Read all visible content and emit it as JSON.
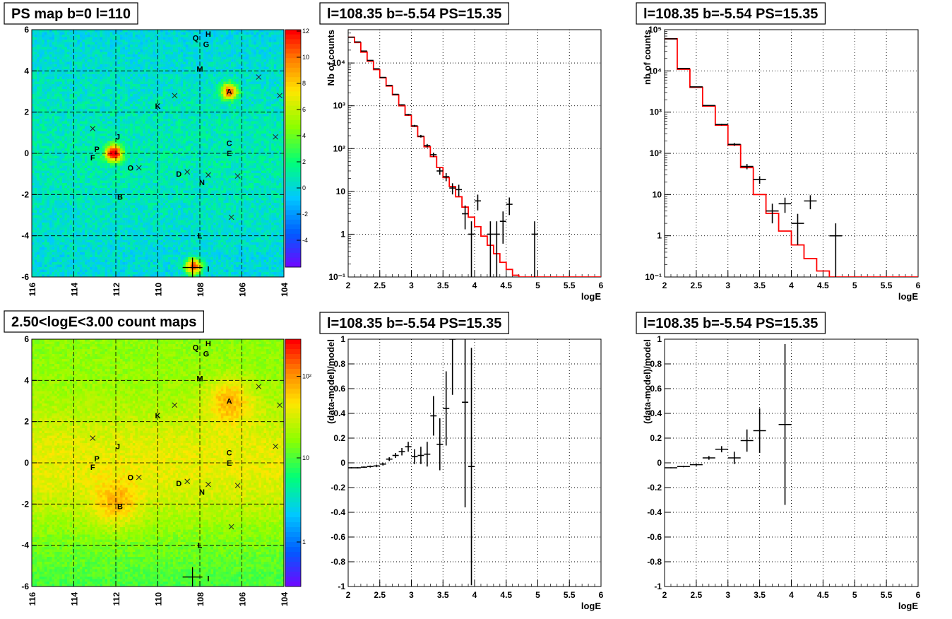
{
  "maps": [
    {
      "title": "PS map b=0 l=110",
      "x_ticks": [
        "116",
        "114",
        "112",
        "110",
        "108",
        "106",
        "104"
      ],
      "y_ticks": [
        "6",
        "4",
        "2",
        "0",
        "-2",
        "-4",
        "-6"
      ],
      "colorbar_ticks": [
        "12",
        "10",
        "8",
        "6",
        "4",
        "2",
        "0",
        "-2",
        "-4"
      ],
      "colorbar_scale": "linear",
      "palette": "rainbow",
      "background": "cyan-green",
      "hotspots": [
        {
          "l": 112.1,
          "b": 0.0,
          "peak": 12
        },
        {
          "l": 106.6,
          "b": 3.0,
          "peak": 9
        },
        {
          "l": 108.3,
          "b": -5.5,
          "peak": 10
        }
      ]
    },
    {
      "title": "2.50<logE<3.00 count maps",
      "x_ticks": [
        "116",
        "114",
        "112",
        "110",
        "108",
        "106",
        "104"
      ],
      "y_ticks": [
        "6",
        "4",
        "2",
        "0",
        "-2",
        "-4",
        "-6"
      ],
      "colorbar_ticks": [
        "10²",
        "10",
        "1"
      ],
      "colorbar_scale": "log",
      "palette": "rainbow",
      "background": "yellow-green",
      "hotspots": [
        {
          "l": 106.6,
          "b": 3.0,
          "peak": 300
        },
        {
          "l": 112.0,
          "b": -2.0,
          "peak": 120
        }
      ]
    }
  ],
  "sources": [
    {
      "label": "Q",
      "l": 108.2,
      "b": 5.6
    },
    {
      "label": "H",
      "l": 107.6,
      "b": 5.8
    },
    {
      "label": "G",
      "l": 107.7,
      "b": 5.3
    },
    {
      "label": "M",
      "l": 108.0,
      "b": 4.1
    },
    {
      "label": "A",
      "l": 106.6,
      "b": 3.0
    },
    {
      "label": "K",
      "l": 110.0,
      "b": 2.3
    },
    {
      "label": "J",
      "l": 111.9,
      "b": 0.8
    },
    {
      "label": "P",
      "l": 112.9,
      "b": 0.2
    },
    {
      "label": "F",
      "l": 113.1,
      "b": -0.2
    },
    {
      "label": "C",
      "l": 106.6,
      "b": 0.5
    },
    {
      "label": "E",
      "l": 106.6,
      "b": -0.0
    },
    {
      "label": "O",
      "l": 111.3,
      "b": -0.7
    },
    {
      "label": "D",
      "l": 109.0,
      "b": -1.0
    },
    {
      "label": "N",
      "l": 107.9,
      "b": -1.4
    },
    {
      "label": "B",
      "l": 111.8,
      "b": -2.1
    },
    {
      "label": "L",
      "l": 108.0,
      "b": -4.0
    },
    {
      "label": "I",
      "l": 107.6,
      "b": -5.6
    }
  ],
  "markers": [
    {
      "l": 105.2,
      "b": 3.7
    },
    {
      "l": 104.2,
      "b": 2.8
    },
    {
      "l": 109.2,
      "b": 2.8
    },
    {
      "l": 113.1,
      "b": 1.2
    },
    {
      "l": 104.4,
      "b": 0.8
    },
    {
      "l": 110.9,
      "b": -0.7
    },
    {
      "l": 108.6,
      "b": -0.9
    },
    {
      "l": 107.6,
      "b": -1.05
    },
    {
      "l": 106.2,
      "b": -1.1
    },
    {
      "l": 106.5,
      "b": -3.1
    }
  ],
  "current_source": {
    "l": 108.35,
    "b": -5.54
  },
  "chart_data": [
    {
      "panel": "top-middle",
      "type": "step+errorbars",
      "title": "l=108.35 b=-5.54 PS=15.35",
      "xlabel": "logE",
      "ylabel": "Nb of counts",
      "yscale": "log",
      "xlim": [
        2,
        6
      ],
      "ylim": [
        0.1,
        60000
      ],
      "grid": true,
      "x_ticks": [
        "2",
        "2.5",
        "3",
        "3.5",
        "4",
        "4.5",
        "5",
        "5.5",
        "6"
      ],
      "y_ticks": [
        {
          "v": 0.1,
          "t": "10⁻¹"
        },
        {
          "v": 1,
          "t": "1"
        },
        {
          "v": 10,
          "t": "10"
        },
        {
          "v": 100,
          "t": "10²"
        },
        {
          "v": 1000,
          "t": "10³"
        },
        {
          "v": 10000,
          "t": "10⁴"
        }
      ],
      "model_bin_width": 0.1,
      "model": [
        40000,
        30000,
        18000,
        11000,
        7000,
        4500,
        2900,
        1800,
        1000,
        600,
        330,
        190,
        110,
        65,
        36,
        21,
        13,
        7.5,
        4.3,
        2.5,
        1.5,
        0.9,
        0.55,
        0.35,
        0.22,
        0.15,
        0.11,
        0.1,
        0.1,
        0.1,
        0.1,
        0.1,
        0.1,
        0.1,
        0.1,
        0.1,
        0.1,
        0.1,
        0.1,
        0.1
      ],
      "data": [
        {
          "x": 2.05,
          "y": 40000,
          "xerr": 0.05,
          "yerr": 200
        },
        {
          "x": 2.15,
          "y": 31000,
          "xerr": 0.05,
          "yerr": 180
        },
        {
          "x": 2.25,
          "y": 19000,
          "xerr": 0.05,
          "yerr": 140
        },
        {
          "x": 2.35,
          "y": 11500,
          "xerr": 0.05,
          "yerr": 110
        },
        {
          "x": 2.45,
          "y": 7300,
          "xerr": 0.05,
          "yerr": 85
        },
        {
          "x": 2.55,
          "y": 4600,
          "xerr": 0.05,
          "yerr": 68
        },
        {
          "x": 2.65,
          "y": 3000,
          "xerr": 0.05,
          "yerr": 55
        },
        {
          "x": 2.75,
          "y": 1850,
          "xerr": 0.05,
          "yerr": 43
        },
        {
          "x": 2.85,
          "y": 1050,
          "xerr": 0.05,
          "yerr": 32
        },
        {
          "x": 2.95,
          "y": 620,
          "xerr": 0.05,
          "yerr": 25
        },
        {
          "x": 3.05,
          "y": 340,
          "xerr": 0.05,
          "yerr": 18
        },
        {
          "x": 3.15,
          "y": 195,
          "xerr": 0.05,
          "yerr": 14
        },
        {
          "x": 3.25,
          "y": 117,
          "xerr": 0.05,
          "yerr": 11
        },
        {
          "x": 3.35,
          "y": 72,
          "xerr": 0.05,
          "yerr": 8.5
        },
        {
          "x": 3.45,
          "y": 30,
          "xerr": 0.05,
          "yerr": 5.5
        },
        {
          "x": 3.55,
          "y": 22,
          "xerr": 0.05,
          "yerr": 4.7
        },
        {
          "x": 3.65,
          "y": 12,
          "xerr": 0.05,
          "yerr": 3.5
        },
        {
          "x": 3.75,
          "y": 11,
          "xerr": 0.05,
          "yerr": 3.3
        },
        {
          "x": 3.85,
          "y": 3,
          "xerr": 0.05,
          "yerr": 1.7
        },
        {
          "x": 3.95,
          "y": 1,
          "xerr": 0.05,
          "yerr": 1
        },
        {
          "x": 4.05,
          "y": 6,
          "xerr": 0.05,
          "yerr": 2.4
        },
        {
          "x": 4.25,
          "y": 1,
          "xerr": 0.05,
          "yerr": 1
        },
        {
          "x": 4.35,
          "y": 1,
          "xerr": 0.05,
          "yerr": 1
        },
        {
          "x": 4.45,
          "y": 2,
          "xerr": 0.05,
          "yerr": 1.4
        },
        {
          "x": 4.55,
          "y": 5,
          "xerr": 0.05,
          "yerr": 2.2
        },
        {
          "x": 4.95,
          "y": 1,
          "xerr": 0.05,
          "yerr": 1
        }
      ]
    },
    {
      "panel": "top-right",
      "type": "step+errorbars",
      "title": "l=108.35 b=-5.54 PS=15.35",
      "xlabel": "logE",
      "ylabel": "nb of counts",
      "yscale": "log",
      "xlim": [
        2,
        6
      ],
      "ylim": [
        0.1,
        100000
      ],
      "grid": true,
      "x_ticks": [
        "2",
        "2.5",
        "3",
        "3.5",
        "4",
        "4.5",
        "5",
        "5.5",
        "6"
      ],
      "y_ticks": [
        {
          "v": 0.1,
          "t": "10⁻¹"
        },
        {
          "v": 1,
          "t": "1"
        },
        {
          "v": 10,
          "t": "10"
        },
        {
          "v": 100,
          "t": "10²"
        },
        {
          "v": 1000,
          "t": "10³"
        },
        {
          "v": 10000,
          "t": "10⁴"
        },
        {
          "v": 100000,
          "t": "10⁵"
        }
      ],
      "model_bin_width": 0.2,
      "model": [
        60000,
        11000,
        4000,
        1400,
        480,
        160,
        45,
        10,
        3.5,
        1.3,
        0.6,
        0.28,
        0.14,
        0.1,
        0.1,
        0.1,
        0.1,
        0.1,
        0.1,
        0.1
      ],
      "data": [
        {
          "x": 2.1,
          "y": 60000,
          "xerr": 0.1,
          "yerr": 250
        },
        {
          "x": 2.3,
          "y": 11500,
          "xerr": 0.1,
          "yerr": 110
        },
        {
          "x": 2.5,
          "y": 4100,
          "xerr": 0.1,
          "yerr": 65
        },
        {
          "x": 2.7,
          "y": 1450,
          "xerr": 0.1,
          "yerr": 38
        },
        {
          "x": 2.9,
          "y": 500,
          "xerr": 0.1,
          "yerr": 22
        },
        {
          "x": 3.1,
          "y": 165,
          "xerr": 0.1,
          "yerr": 13
        },
        {
          "x": 3.3,
          "y": 48,
          "xerr": 0.1,
          "yerr": 7
        },
        {
          "x": 3.5,
          "y": 23,
          "xerr": 0.1,
          "yerr": 4.8
        },
        {
          "x": 3.7,
          "y": 4,
          "xerr": 0.1,
          "yerr": 2
        },
        {
          "x": 3.9,
          "y": 6,
          "xerr": 0.1,
          "yerr": 2.4
        },
        {
          "x": 4.1,
          "y": 2,
          "xerr": 0.1,
          "yerr": 1.4
        },
        {
          "x": 4.3,
          "y": 7,
          "xerr": 0.1,
          "yerr": 2.6
        },
        {
          "x": 4.7,
          "y": 1,
          "xerr": 0.1,
          "yerr": 1
        }
      ]
    },
    {
      "panel": "bottom-middle",
      "type": "errorbars",
      "title": "l=108.35 b=-5.54 PS=15.35",
      "xlabel": "logE",
      "ylabel": "(data-model)/model",
      "yscale": "linear",
      "xlim": [
        2,
        6
      ],
      "ylim": [
        -1,
        1
      ],
      "grid": true,
      "x_ticks": [
        "2",
        "2.5",
        "3",
        "3.5",
        "4",
        "4.5",
        "5",
        "5.5",
        "6"
      ],
      "y_ticks": [
        "1",
        "0.8",
        "0.6",
        "0.4",
        "0.2",
        "0",
        "-0.2",
        "-0.4",
        "-0.6",
        "-0.8",
        "-1"
      ],
      "data": [
        {
          "x": 2.05,
          "y": -0.04,
          "xerr": 0.05,
          "yerr": 0.005
        },
        {
          "x": 2.15,
          "y": -0.04,
          "xerr": 0.05,
          "yerr": 0.005
        },
        {
          "x": 2.25,
          "y": -0.035,
          "xerr": 0.05,
          "yerr": 0.006
        },
        {
          "x": 2.35,
          "y": -0.03,
          "xerr": 0.05,
          "yerr": 0.008
        },
        {
          "x": 2.45,
          "y": -0.025,
          "xerr": 0.05,
          "yerr": 0.01
        },
        {
          "x": 2.55,
          "y": -0.01,
          "xerr": 0.05,
          "yerr": 0.012
        },
        {
          "x": 2.65,
          "y": 0.03,
          "xerr": 0.05,
          "yerr": 0.015
        },
        {
          "x": 2.75,
          "y": 0.06,
          "xerr": 0.05,
          "yerr": 0.02
        },
        {
          "x": 2.85,
          "y": 0.09,
          "xerr": 0.05,
          "yerr": 0.03
        },
        {
          "x": 2.95,
          "y": 0.13,
          "xerr": 0.05,
          "yerr": 0.04
        },
        {
          "x": 3.05,
          "y": 0.05,
          "xerr": 0.05,
          "yerr": 0.06
        },
        {
          "x": 3.15,
          "y": 0.06,
          "xerr": 0.05,
          "yerr": 0.07
        },
        {
          "x": 3.25,
          "y": 0.07,
          "xerr": 0.05,
          "yerr": 0.1
        },
        {
          "x": 3.35,
          "y": 0.38,
          "xerr": 0.05,
          "yerr": 0.16
        },
        {
          "x": 3.45,
          "y": 0.15,
          "xerr": 0.05,
          "yerr": 0.21
        },
        {
          "x": 3.55,
          "y": 0.44,
          "xerr": 0.05,
          "yerr": 0.3
        },
        {
          "x": 3.65,
          "y": 1.0,
          "xerr": 0.05,
          "yerr": 0.45
        },
        {
          "x": 3.85,
          "y": 0.49,
          "xerr": 0.05,
          "yerr": 0.85
        },
        {
          "x": 3.95,
          "y": -0.03,
          "xerr": 0.05,
          "yerr": 0.96
        }
      ]
    },
    {
      "panel": "bottom-right",
      "type": "errorbars",
      "title": "l=108.35 b=-5.54 PS=15.35",
      "xlabel": "logE",
      "ylabel": "(data-model)/model",
      "yscale": "linear",
      "xlim": [
        2,
        6
      ],
      "ylim": [
        -1,
        1
      ],
      "grid": true,
      "x_ticks": [
        "2",
        "2.5",
        "3",
        "3.5",
        "4",
        "4.5",
        "5",
        "5.5",
        "6"
      ],
      "y_ticks": [
        "1",
        "0.8",
        "0.6",
        "0.4",
        "0.2",
        "0",
        "-0.2",
        "-0.4",
        "-0.6",
        "-0.8",
        "-1"
      ],
      "data": [
        {
          "x": 2.1,
          "y": -0.04,
          "xerr": 0.1,
          "yerr": 0.004
        },
        {
          "x": 2.3,
          "y": -0.03,
          "xerr": 0.1,
          "yerr": 0.006
        },
        {
          "x": 2.5,
          "y": -0.015,
          "xerr": 0.1,
          "yerr": 0.01
        },
        {
          "x": 2.7,
          "y": 0.04,
          "xerr": 0.1,
          "yerr": 0.015
        },
        {
          "x": 2.9,
          "y": 0.11,
          "xerr": 0.1,
          "yerr": 0.025
        },
        {
          "x": 3.1,
          "y": 0.04,
          "xerr": 0.1,
          "yerr": 0.05
        },
        {
          "x": 3.3,
          "y": 0.18,
          "xerr": 0.1,
          "yerr": 0.09
        },
        {
          "x": 3.5,
          "y": 0.26,
          "xerr": 0.1,
          "yerr": 0.18
        },
        {
          "x": 3.9,
          "y": 0.31,
          "xerr": 0.1,
          "yerr": 0.65
        }
      ]
    }
  ]
}
